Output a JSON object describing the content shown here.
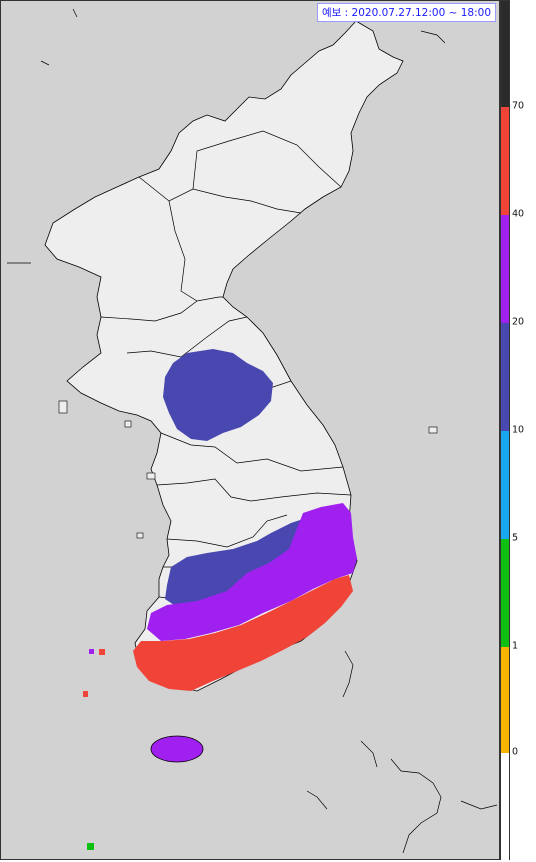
{
  "title": "예보 : 2020.07.27.12:00 ~ 18:00",
  "legend": {
    "thresholds": [
      {
        "label": "70",
        "value": 70
      },
      {
        "label": "40",
        "value": 40
      },
      {
        "label": "20",
        "value": 20
      },
      {
        "label": "10",
        "value": 10
      },
      {
        "label": "5",
        "value": 5
      },
      {
        "label": "1",
        "value": 1
      },
      {
        "label": "0",
        "value": 0
      }
    ],
    "colors": {
      "above_70": "#2b2b2b",
      "40_to_70": "#f04438",
      "20_to_40": "#a020f0",
      "10_to_20": "#4848b0",
      "5_to_10": "#18a8f0",
      "1_to_5": "#10c010",
      "0_to_1": "#f7b500",
      "below_0": "#ffffff"
    }
  },
  "map_colors": {
    "sea": "#d2d2d2",
    "land": "#eeeeee",
    "border": "#000000"
  }
}
